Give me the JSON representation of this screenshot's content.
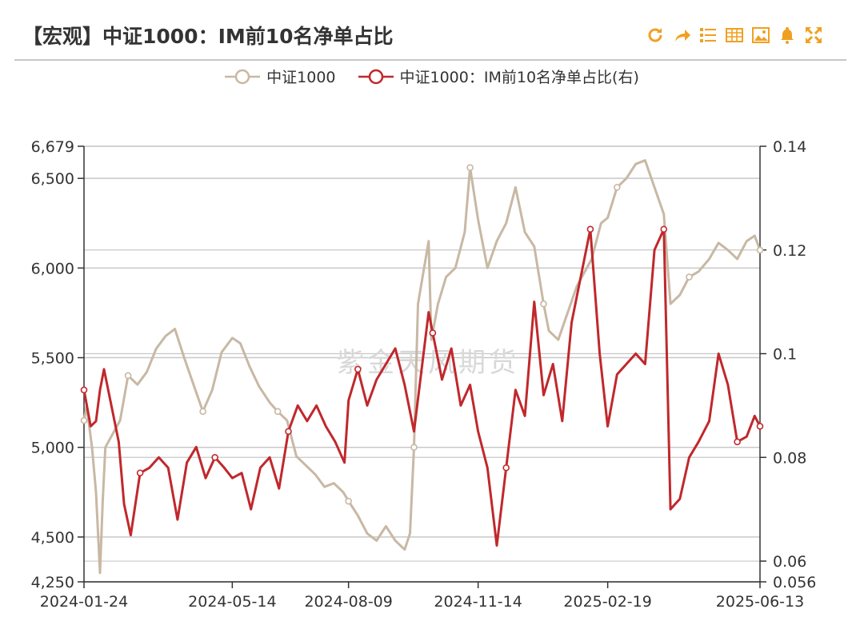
{
  "title": "【宏观】中证1000：IM前10名净单占比",
  "toolbar": [
    "refresh-icon",
    "share-icon",
    "list-icon",
    "table-icon",
    "image-icon",
    "bell-icon",
    "fullscreen-icon"
  ],
  "watermark": "紫金天风期货",
  "colors": {
    "accent": "#f0a020",
    "series1": "#c8b8a4",
    "series2": "#c0282c",
    "grid": "#c8c8c8"
  },
  "chart_data": {
    "type": "line",
    "legend_position": "top-center",
    "grid": true,
    "x_ticks": [
      "2024-01-24",
      "2024-05-14",
      "2024-08-09",
      "2024-11-14",
      "2025-02-19",
      "2025-06-13"
    ],
    "x_range": [
      "2024-01-24",
      "2025-06-13"
    ],
    "y_left": {
      "ticks": [
        "4,250",
        "4,500",
        "5,000",
        "5,500",
        "6,000",
        "6,500",
        "6,679"
      ],
      "range": [
        4250,
        6679
      ]
    },
    "y_right": {
      "ticks": [
        "0.056",
        "0.06",
        "0.08",
        "0.1",
        "0.12",
        "0.14"
      ],
      "range": [
        0.056,
        0.14
      ]
    },
    "series": [
      {
        "name": "中证1000",
        "axis": "left",
        "points": [
          [
            "2024-01-24",
            5150
          ],
          [
            "2024-01-26",
            5230
          ],
          [
            "2024-01-30",
            5000
          ],
          [
            "2024-02-02",
            4750
          ],
          [
            "2024-02-05",
            4300
          ],
          [
            "2024-02-07",
            4700
          ],
          [
            "2024-02-09",
            5000
          ],
          [
            "2024-02-20",
            5150
          ],
          [
            "2024-02-26",
            5400
          ],
          [
            "2024-03-04",
            5350
          ],
          [
            "2024-03-11",
            5420
          ],
          [
            "2024-03-18",
            5550
          ],
          [
            "2024-03-25",
            5620
          ],
          [
            "2024-04-01",
            5660
          ],
          [
            "2024-04-08",
            5500
          ],
          [
            "2024-04-15",
            5350
          ],
          [
            "2024-04-22",
            5200
          ],
          [
            "2024-04-29",
            5320
          ],
          [
            "2024-05-06",
            5530
          ],
          [
            "2024-05-14",
            5610
          ],
          [
            "2024-05-20",
            5580
          ],
          [
            "2024-05-27",
            5450
          ],
          [
            "2024-06-03",
            5340
          ],
          [
            "2024-06-11",
            5250
          ],
          [
            "2024-06-17",
            5200
          ],
          [
            "2024-06-24",
            5150
          ],
          [
            "2024-07-01",
            4950
          ],
          [
            "2024-07-08",
            4900
          ],
          [
            "2024-07-15",
            4850
          ],
          [
            "2024-07-22",
            4780
          ],
          [
            "2024-07-29",
            4800
          ],
          [
            "2024-08-05",
            4750
          ],
          [
            "2024-08-09",
            4700
          ],
          [
            "2024-08-16",
            4620
          ],
          [
            "2024-08-23",
            4520
          ],
          [
            "2024-08-30",
            4480
          ],
          [
            "2024-09-06",
            4560
          ],
          [
            "2024-09-13",
            4480
          ],
          [
            "2024-09-20",
            4430
          ],
          [
            "2024-09-24",
            4520
          ],
          [
            "2024-09-27",
            5000
          ],
          [
            "2024-09-30",
            5800
          ],
          [
            "2024-10-08",
            6150
          ],
          [
            "2024-10-10",
            5600
          ],
          [
            "2024-10-15",
            5800
          ],
          [
            "2024-10-21",
            5950
          ],
          [
            "2024-10-28",
            6000
          ],
          [
            "2024-11-04",
            6200
          ],
          [
            "2024-11-08",
            6560
          ],
          [
            "2024-11-14",
            6270
          ],
          [
            "2024-11-21",
            6000
          ],
          [
            "2024-11-28",
            6150
          ],
          [
            "2024-12-05",
            6250
          ],
          [
            "2024-12-12",
            6450
          ],
          [
            "2024-12-19",
            6200
          ],
          [
            "2024-12-26",
            6120
          ],
          [
            "2025-01-02",
            5800
          ],
          [
            "2025-01-06",
            5650
          ],
          [
            "2025-01-13",
            5600
          ],
          [
            "2025-01-20",
            5750
          ],
          [
            "2025-01-27",
            5900
          ],
          [
            "2025-02-07",
            6050
          ],
          [
            "2025-02-14",
            6250
          ],
          [
            "2025-02-19",
            6280
          ],
          [
            "2025-02-26",
            6450
          ],
          [
            "2025-03-05",
            6500
          ],
          [
            "2025-03-12",
            6580
          ],
          [
            "2025-03-19",
            6600
          ],
          [
            "2025-03-26",
            6450
          ],
          [
            "2025-04-02",
            6300
          ],
          [
            "2025-04-07",
            5800
          ],
          [
            "2025-04-14",
            5850
          ],
          [
            "2025-04-21",
            5950
          ],
          [
            "2025-04-28",
            5980
          ],
          [
            "2025-05-06",
            6050
          ],
          [
            "2025-05-13",
            6140
          ],
          [
            "2025-05-20",
            6100
          ],
          [
            "2025-05-27",
            6050
          ],
          [
            "2025-06-03",
            6150
          ],
          [
            "2025-06-09",
            6180
          ],
          [
            "2025-06-13",
            6100
          ]
        ]
      },
      {
        "name": "中证1000：IM前10名净单占比(右)",
        "axis": "right",
        "points": [
          [
            "2024-01-24",
            0.093
          ],
          [
            "2024-01-29",
            0.086
          ],
          [
            "2024-02-02",
            0.087
          ],
          [
            "2024-02-05",
            0.093
          ],
          [
            "2024-02-08",
            0.097
          ],
          [
            "2024-02-19",
            0.083
          ],
          [
            "2024-02-23",
            0.071
          ],
          [
            "2024-02-28",
            0.065
          ],
          [
            "2024-03-06",
            0.077
          ],
          [
            "2024-03-13",
            0.078
          ],
          [
            "2024-03-20",
            0.08
          ],
          [
            "2024-03-27",
            0.078
          ],
          [
            "2024-04-03",
            0.068
          ],
          [
            "2024-04-10",
            0.079
          ],
          [
            "2024-04-17",
            0.082
          ],
          [
            "2024-04-24",
            0.076
          ],
          [
            "2024-05-01",
            0.08
          ],
          [
            "2024-05-08",
            0.078
          ],
          [
            "2024-05-14",
            0.076
          ],
          [
            "2024-05-21",
            0.077
          ],
          [
            "2024-05-28",
            0.07
          ],
          [
            "2024-06-04",
            0.078
          ],
          [
            "2024-06-11",
            0.08
          ],
          [
            "2024-06-18",
            0.074
          ],
          [
            "2024-06-25",
            0.085
          ],
          [
            "2024-07-02",
            0.09
          ],
          [
            "2024-07-09",
            0.087
          ],
          [
            "2024-07-16",
            0.09
          ],
          [
            "2024-07-23",
            0.086
          ],
          [
            "2024-07-30",
            0.083
          ],
          [
            "2024-08-06",
            0.079
          ],
          [
            "2024-08-09",
            0.091
          ],
          [
            "2024-08-16",
            0.097
          ],
          [
            "2024-08-23",
            0.09
          ],
          [
            "2024-08-30",
            0.095
          ],
          [
            "2024-09-06",
            0.098
          ],
          [
            "2024-09-13",
            0.101
          ],
          [
            "2024-09-20",
            0.094
          ],
          [
            "2024-09-27",
            0.085
          ],
          [
            "2024-10-08",
            0.108
          ],
          [
            "2024-10-11",
            0.104
          ],
          [
            "2024-10-18",
            0.095
          ],
          [
            "2024-10-25",
            0.101
          ],
          [
            "2024-11-01",
            0.09
          ],
          [
            "2024-11-08",
            0.094
          ],
          [
            "2024-11-14",
            0.085
          ],
          [
            "2024-11-21",
            0.078
          ],
          [
            "2024-11-28",
            0.063
          ],
          [
            "2024-12-05",
            0.078
          ],
          [
            "2024-12-12",
            0.093
          ],
          [
            "2024-12-19",
            0.088
          ],
          [
            "2024-12-26",
            0.11
          ],
          [
            "2025-01-02",
            0.092
          ],
          [
            "2025-01-09",
            0.098
          ],
          [
            "2025-01-16",
            0.087
          ],
          [
            "2025-01-23",
            0.106
          ],
          [
            "2025-02-06",
            0.124
          ],
          [
            "2025-02-13",
            0.1
          ],
          [
            "2025-02-19",
            0.086
          ],
          [
            "2025-02-26",
            0.096
          ],
          [
            "2025-03-05",
            0.098
          ],
          [
            "2025-03-12",
            0.1
          ],
          [
            "2025-03-19",
            0.098
          ],
          [
            "2025-03-26",
            0.12
          ],
          [
            "2025-04-02",
            0.124
          ],
          [
            "2025-04-07",
            0.07
          ],
          [
            "2025-04-14",
            0.072
          ],
          [
            "2025-04-21",
            0.08
          ],
          [
            "2025-04-28",
            0.083
          ],
          [
            "2025-05-06",
            0.087
          ],
          [
            "2025-05-13",
            0.1
          ],
          [
            "2025-05-20",
            0.094
          ],
          [
            "2025-05-27",
            0.083
          ],
          [
            "2025-06-03",
            0.084
          ],
          [
            "2025-06-09",
            0.088
          ],
          [
            "2025-06-13",
            0.086
          ]
        ]
      }
    ]
  }
}
